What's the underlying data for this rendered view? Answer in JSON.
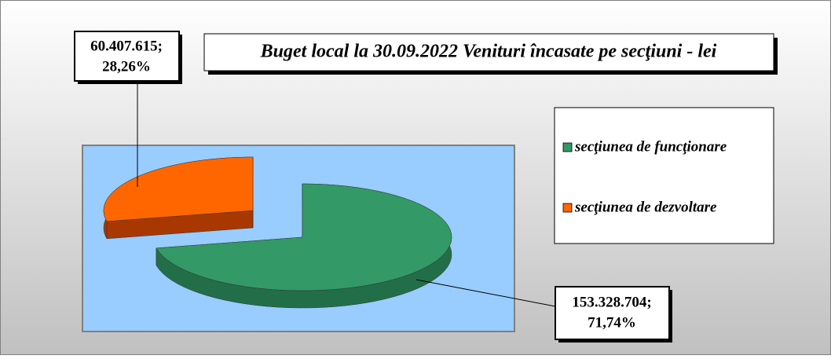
{
  "chart_data": {
    "type": "pie",
    "title": "Buget local la 30.09.2022 Venituri încasate pe secţiuni - lei",
    "categories": [
      "secţiunea de funcţionare",
      "secţiunea de dezvoltare"
    ],
    "values": [
      153328704,
      60407615
    ],
    "value_labels": [
      "153.328.704;",
      "60.407.615;"
    ],
    "percentages": [
      71.74,
      28.26
    ],
    "percentage_labels": [
      "71,74%",
      "28,26%"
    ],
    "colors": [
      "#339966",
      "#ff6600"
    ],
    "side_colors": [
      "#226e48",
      "#a83800"
    ]
  }
}
